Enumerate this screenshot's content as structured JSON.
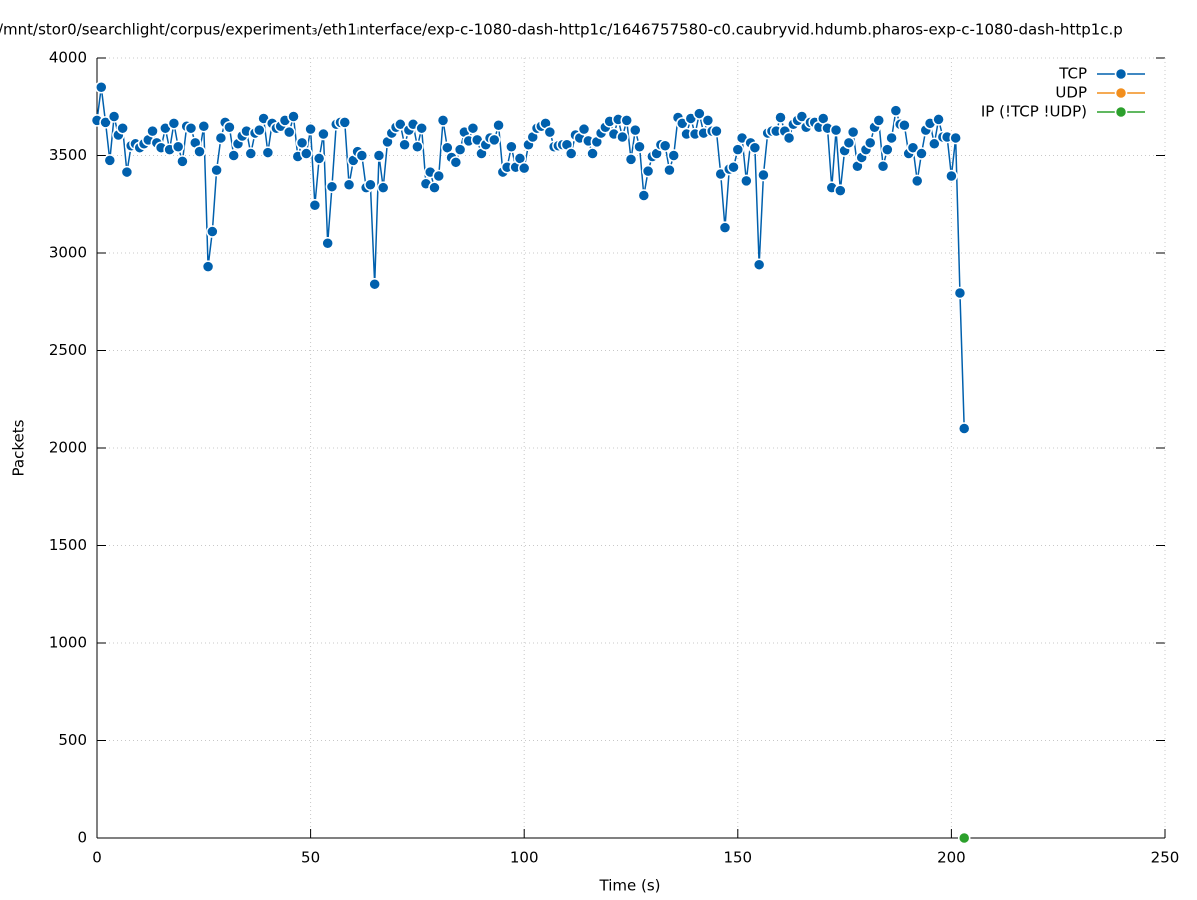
{
  "chart_data": {
    "type": "line",
    "title": "/mnt/stor0/searchlight/corpus/experiment₃/eth1ᵢnterface/exp-c-1080-dash-http1c/1646757580-c0.caubryvid.hdumb.pharos-exp-c-1080-dash-http1c.p",
    "x_label": "Time (s)",
    "y_label": "Packets",
    "xlim": [
      0,
      250
    ],
    "ylim": [
      0,
      4000
    ],
    "xticks": [
      0,
      50,
      100,
      150,
      200,
      250
    ],
    "yticks": [
      0,
      500,
      1000,
      1500,
      2000,
      2500,
      3000,
      3500,
      4000
    ],
    "grid": true,
    "legend": "top-right",
    "series": [
      {
        "name": "TCP",
        "color": "#0060ad",
        "x": [
          0,
          1,
          2,
          3,
          4,
          5,
          6,
          7,
          8,
          9,
          10,
          11,
          12,
          13,
          14,
          15,
          16,
          17,
          18,
          19,
          20,
          21,
          22,
          23,
          24,
          25,
          26,
          27,
          28,
          29,
          30,
          31,
          32,
          33,
          34,
          35,
          36,
          37,
          38,
          39,
          40,
          41,
          42,
          43,
          44,
          45,
          46,
          47,
          48,
          49,
          50,
          51,
          52,
          53,
          54,
          55,
          56,
          57,
          58,
          59,
          60,
          61,
          62,
          63,
          64,
          65,
          66,
          67,
          68,
          69,
          70,
          71,
          72,
          73,
          74,
          75,
          76,
          77,
          78,
          79,
          80,
          81,
          82,
          83,
          84,
          85,
          86,
          87,
          88,
          89,
          90,
          91,
          92,
          93,
          94,
          95,
          96,
          97,
          98,
          99,
          100,
          101,
          102,
          103,
          104,
          105,
          106,
          107,
          108,
          109,
          110,
          111,
          112,
          113,
          114,
          115,
          116,
          117,
          118,
          119,
          120,
          121,
          122,
          123,
          124,
          125,
          126,
          127,
          128,
          129,
          130,
          131,
          132,
          133,
          134,
          135,
          136,
          137,
          138,
          139,
          140,
          141,
          142,
          143,
          144,
          145,
          146,
          147,
          148,
          149,
          150,
          151,
          152,
          153,
          154,
          155,
          156,
          157,
          158,
          159,
          160,
          161,
          162,
          163,
          164,
          165,
          166,
          167,
          168,
          169,
          170,
          171,
          172,
          173,
          174,
          175,
          176,
          177,
          178,
          179,
          180,
          181,
          182,
          183,
          184,
          185,
          186,
          187,
          188,
          189,
          190,
          191,
          192,
          193,
          194,
          195,
          196,
          197,
          198,
          199,
          200,
          201,
          202,
          203
        ],
        "values": [
          3680,
          3850,
          3670,
          3475,
          3700,
          3605,
          3640,
          3415,
          3550,
          3560,
          3540,
          3560,
          3580,
          3625,
          3565,
          3540,
          3640,
          3530,
          3665,
          3545,
          3470,
          3650,
          3640,
          3565,
          3520,
          3650,
          2930,
          3110,
          3425,
          3590,
          3670,
          3645,
          3500,
          3560,
          3600,
          3625,
          3510,
          3615,
          3630,
          3690,
          3515,
          3665,
          3640,
          3650,
          3680,
          3620,
          3700,
          3495,
          3565,
          3510,
          3635,
          3245,
          3485,
          3610,
          3050,
          3340,
          3660,
          3670,
          3670,
          3350,
          3475,
          3520,
          3500,
          3335,
          3350,
          2840,
          3500,
          3335,
          3570,
          3615,
          3645,
          3660,
          3555,
          3630,
          3660,
          3545,
          3640,
          3355,
          3415,
          3335,
          3395,
          3680,
          3540,
          3490,
          3465,
          3530,
          3620,
          3575,
          3640,
          3580,
          3510,
          3555,
          3590,
          3580,
          3655,
          3415,
          3440,
          3545,
          3440,
          3485,
          3435,
          3555,
          3595,
          3640,
          3650,
          3665,
          3620,
          3545,
          3550,
          3555,
          3555,
          3510,
          3605,
          3590,
          3635,
          3575,
          3510,
          3570,
          3615,
          3645,
          3675,
          3610,
          3685,
          3595,
          3680,
          3480,
          3630,
          3545,
          3295,
          3420,
          3495,
          3510,
          3555,
          3550,
          3425,
          3500,
          3695,
          3665,
          3610,
          3690,
          3610,
          3715,
          3615,
          3680,
          3625,
          3625,
          3405,
          3130,
          3430,
          3440,
          3530,
          3590,
          3370,
          3565,
          3540,
          2940,
          3400,
          3615,
          3625,
          3625,
          3695,
          3625,
          3590,
          3660,
          3680,
          3700,
          3645,
          3670,
          3670,
          3645,
          3690,
          3640,
          3335,
          3630,
          3320,
          3525,
          3565,
          3620,
          3445,
          3490,
          3530,
          3565,
          3645,
          3680,
          3445,
          3530,
          3590,
          3730,
          3660,
          3655,
          3510,
          3540,
          3370,
          3510,
          3630,
          3665,
          3560,
          3685,
          3595,
          3595,
          3395,
          3590,
          2795,
          2100
        ]
      },
      {
        "name": "UDP",
        "color": "#f28e1c",
        "x": [],
        "values": []
      },
      {
        "name": "IP (!TCP  !UDP)",
        "color": "#2ca02c",
        "x": [
          203
        ],
        "values": [
          0
        ]
      }
    ]
  }
}
